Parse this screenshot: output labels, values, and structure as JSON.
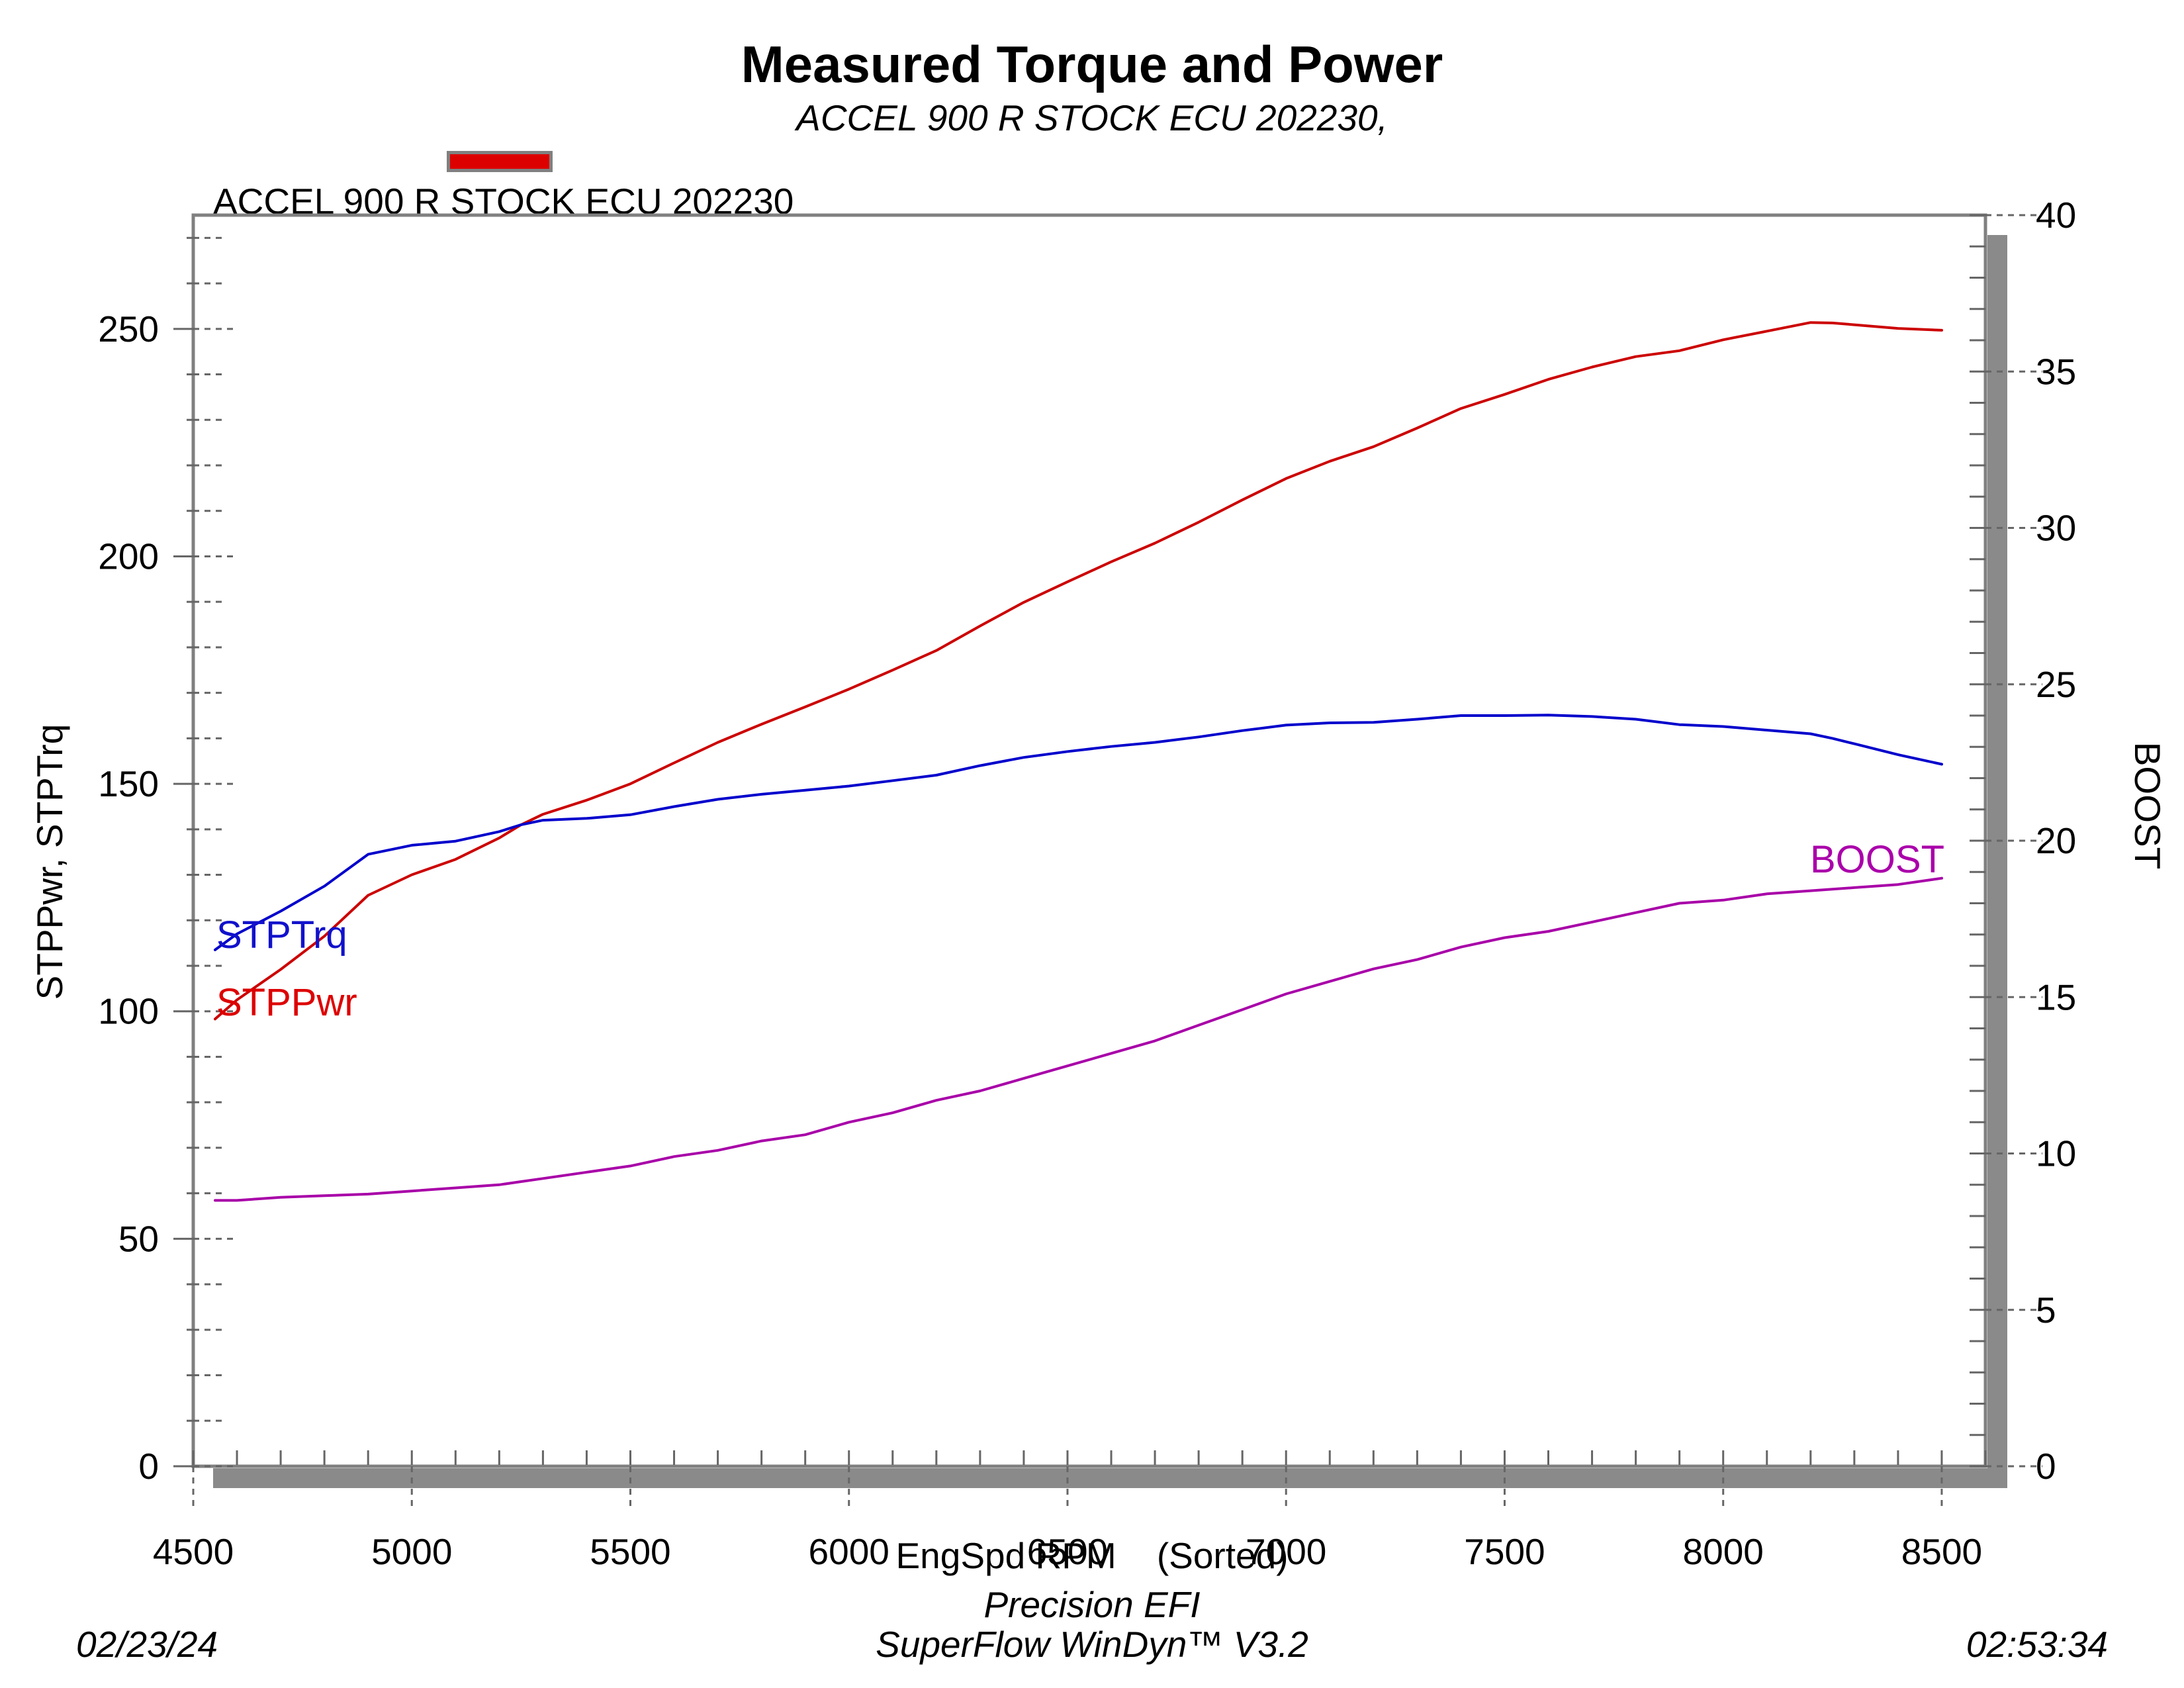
{
  "title": "Measured Torque and Power",
  "subtitle": "ACCEL 900 R STOCK ECU 202230,",
  "legend": {
    "swatch_color": "#dd0000",
    "label": "ACCEL 900 R STOCK ECU 202230"
  },
  "axes": {
    "x": {
      "title": "EngSpd RPM    (Sorted)",
      "min": 4500,
      "max": 8600,
      "major_ticks": [
        4500,
        5000,
        5500,
        6000,
        6500,
        7000,
        7500,
        8000,
        8500
      ],
      "minor_step": 100
    },
    "y_left": {
      "title": "STPPwr, STPTrq",
      "min": 0,
      "max": 275,
      "major_ticks": [
        0,
        50,
        100,
        150,
        200,
        250
      ],
      "minor_step": 10
    },
    "y_right": {
      "title": "BOOST",
      "min": 0,
      "max": 40,
      "major_ticks": [
        0,
        5,
        10,
        15,
        20,
        25,
        30,
        35,
        40
      ],
      "minor_step": 1
    }
  },
  "curve_labels": [
    {
      "text": "STPTrq",
      "color": "#1111cc"
    },
    {
      "text": "STPPwr",
      "color": "#dd0000"
    },
    {
      "text": "BOOST",
      "color": "#aa00aa"
    }
  ],
  "footer": {
    "date": "02/23/24",
    "brand": "Precision EFI",
    "software": "SuperFlow WinDyn™ V3.2",
    "time": "02:53:34"
  },
  "colors": {
    "border_gray": "#808080",
    "shadow_gray": "#8a8a8a",
    "tick_gray": "#666666",
    "stppwr_red": "#cc0000",
    "stptrq_blue": "#0000cc",
    "boost_magenta": "#a800a8"
  },
  "chart_data": {
    "type": "line",
    "xlabel": "EngSpd RPM (Sorted)",
    "ylabel_left": "STPPwr, STPTrq",
    "ylabel_right": "BOOST",
    "x_range": [
      4500,
      8600
    ],
    "y_left_range": [
      0,
      275
    ],
    "y_right_range": [
      0,
      40
    ],
    "grid": false,
    "x": [
      4550,
      4600,
      4700,
      4800,
      4900,
      5000,
      5100,
      5200,
      5250,
      5300,
      5400,
      5500,
      5600,
      5700,
      5800,
      5900,
      6000,
      6100,
      6200,
      6300,
      6400,
      6500,
      6600,
      6700,
      6800,
      6900,
      7000,
      7100,
      7200,
      7300,
      7400,
      7500,
      7600,
      7700,
      7800,
      7900,
      8000,
      8100,
      8200,
      8250,
      8300,
      8400,
      8500
    ],
    "series": [
      {
        "name": "STPPwr",
        "axis": "left",
        "color": "#cc0000",
        "values": [
          98.3,
          102.5,
          109.2,
          116.5,
          125.5,
          130.0,
          133.4,
          138.1,
          141.0,
          143.3,
          146.4,
          150.0,
          154.6,
          159.1,
          163.1,
          166.9,
          170.8,
          175.0,
          179.3,
          184.7,
          189.9,
          194.4,
          198.8,
          202.9,
          207.5,
          212.4,
          217.1,
          220.9,
          224.1,
          228.2,
          232.5,
          235.6,
          238.9,
          241.6,
          243.9,
          245.2,
          247.6,
          249.5,
          251.4,
          251.3,
          250.9,
          250.1,
          249.7
        ]
      },
      {
        "name": "STPTrq",
        "axis": "left",
        "color": "#0000cc",
        "values": [
          113.5,
          117.0,
          122.0,
          127.5,
          134.5,
          136.5,
          137.4,
          139.5,
          141.0,
          142.0,
          142.4,
          143.2,
          145.0,
          146.6,
          147.7,
          148.6,
          149.5,
          150.7,
          151.9,
          154.0,
          155.8,
          157.1,
          158.2,
          159.1,
          160.3,
          161.7,
          162.9,
          163.4,
          163.5,
          164.2,
          165.0,
          165.0,
          165.1,
          164.8,
          164.2,
          163.0,
          162.6,
          161.8,
          161.0,
          160.0,
          158.8,
          156.4,
          154.3
        ]
      },
      {
        "name": "BOOST",
        "axis": "right",
        "color": "#a800a8",
        "values": [
          8.5,
          8.5,
          8.6,
          8.65,
          8.7,
          8.8,
          8.9,
          9.0,
          9.1,
          9.2,
          9.4,
          9.6,
          9.9,
          10.1,
          10.4,
          10.6,
          11.0,
          11.3,
          11.7,
          12.0,
          12.4,
          12.8,
          13.2,
          13.6,
          14.1,
          14.6,
          15.1,
          15.5,
          15.9,
          16.2,
          16.6,
          16.9,
          17.1,
          17.4,
          17.7,
          18.0,
          18.1,
          18.3,
          18.4,
          18.45,
          18.5,
          18.6,
          18.8
        ]
      }
    ]
  }
}
